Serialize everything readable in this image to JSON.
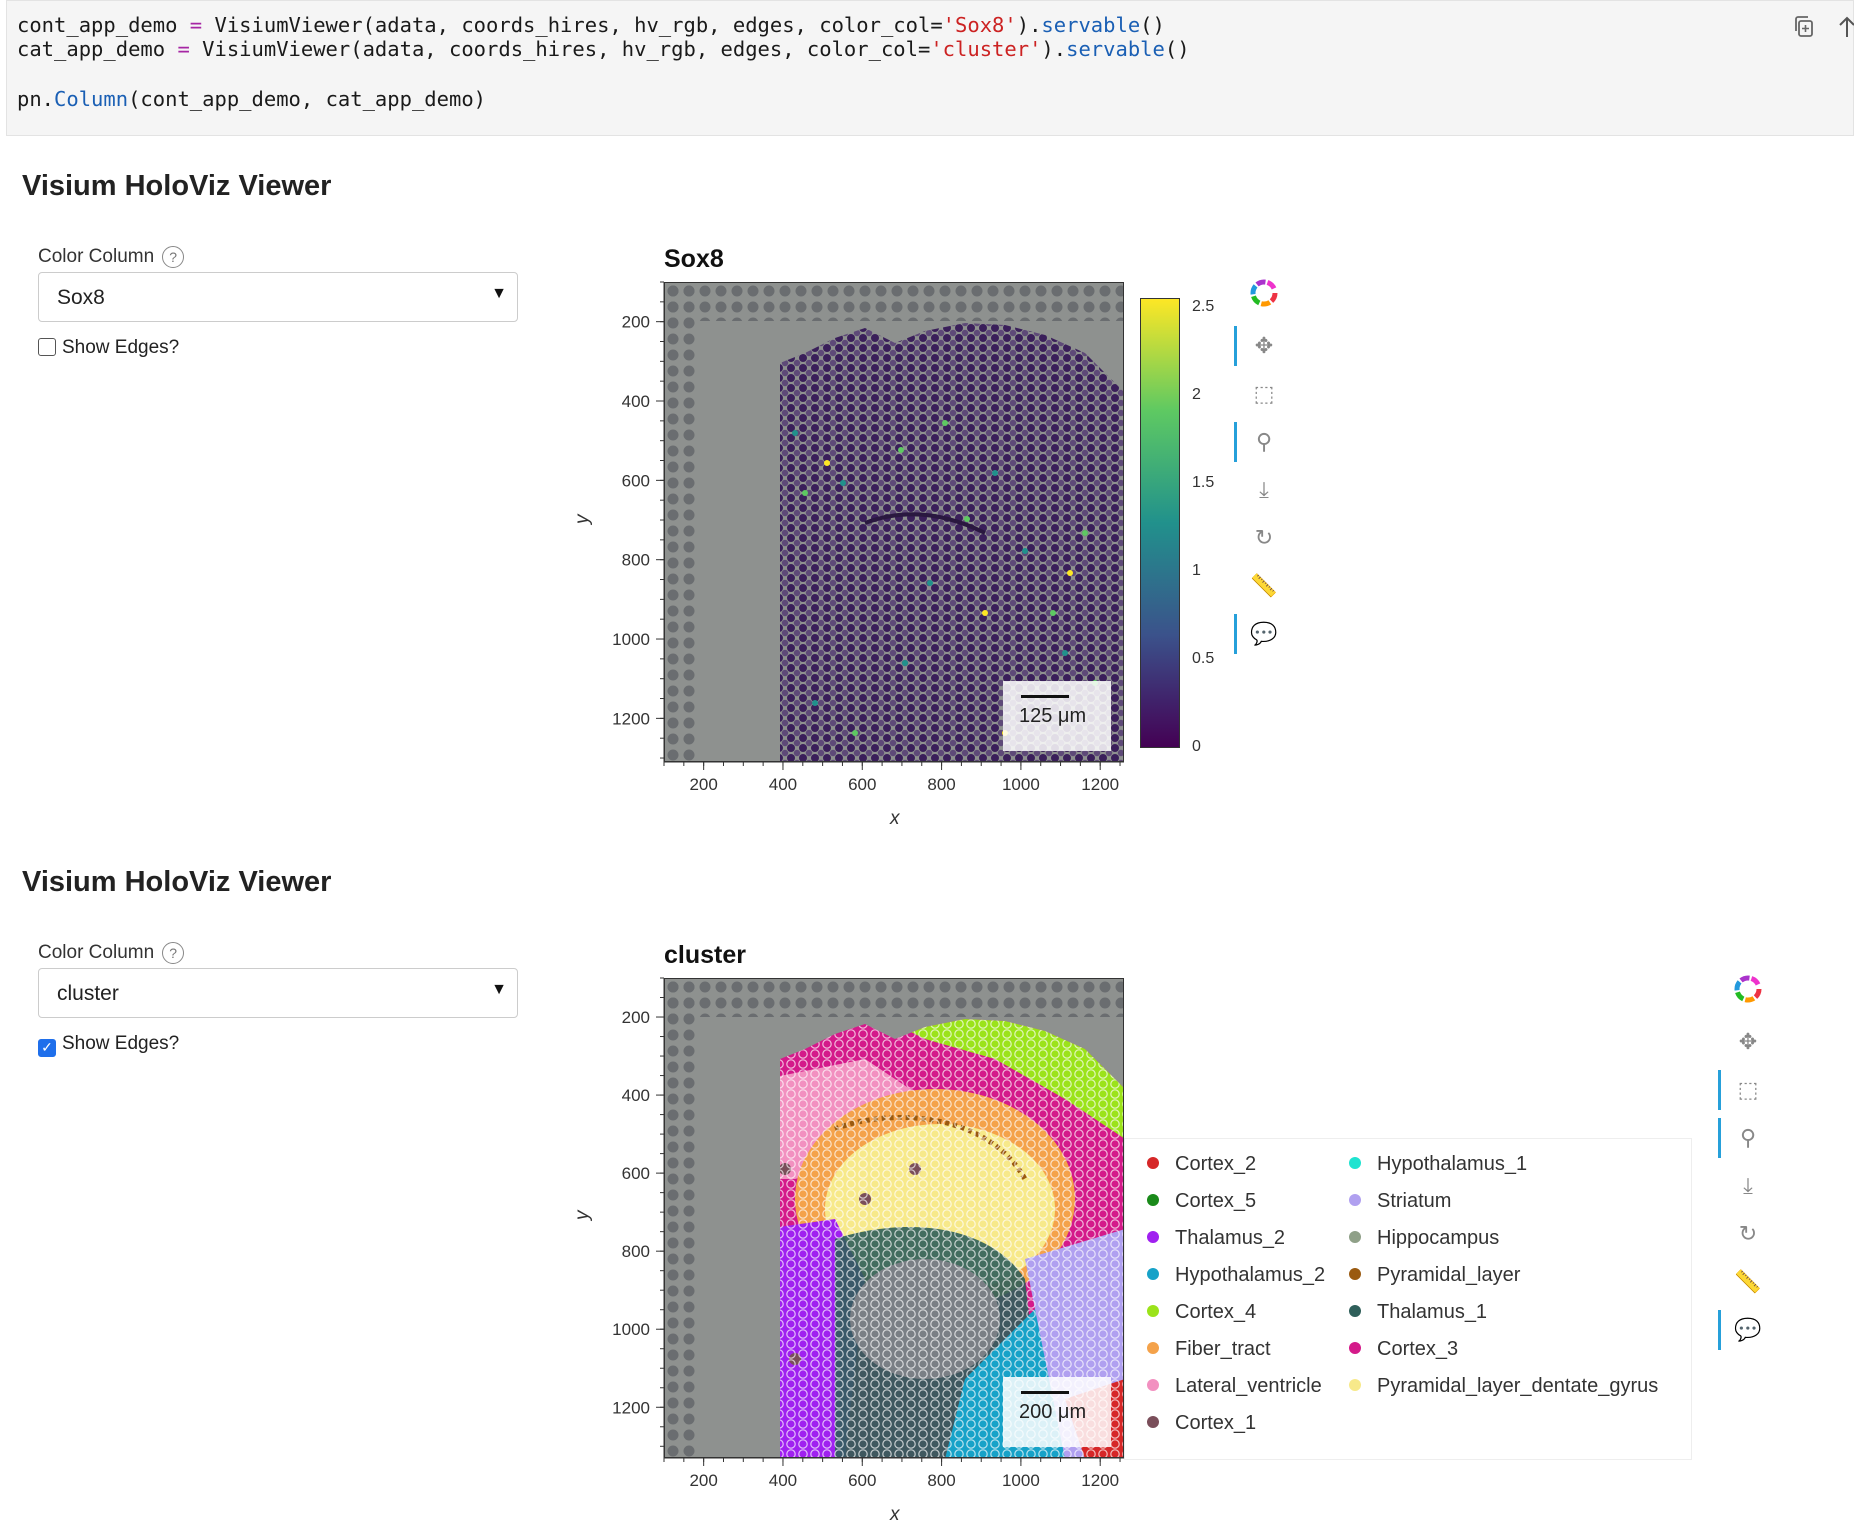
{
  "code": {
    "line1": {
      "a": "cont_app_demo ",
      "op": "=",
      "b": " VisiumViewer(adata, coords_hires, hv_rgb, edges, color_col=",
      "s": "'Sox8'",
      "c": ").",
      "f": "servable",
      "d": "()"
    },
    "line2": {
      "a": "cat_app_demo ",
      "op": "=",
      "b": " VisiumViewer(adata, coords_hires, hv_rgb, edges, color_col=",
      "s": "'cluster'",
      "c": ").",
      "f": "servable",
      "d": "()"
    },
    "line3": {
      "a": "pn.",
      "f": "Column",
      "b": "(cont_app_demo, cat_app_demo)"
    },
    "icons": [
      "copy-icon",
      "arrow-up-icon"
    ]
  },
  "apps": [
    {
      "title": "Visium HoloViz Viewer",
      "color_label": "Color Column",
      "help": "?",
      "selected": "Sox8",
      "show_edges_label": "Show Edges?",
      "show_edges": false,
      "plot_title": "Sox8",
      "xlabel": "x",
      "ylabel": "y",
      "scalebar": "125 μm",
      "colorbar_ticks": [
        "2.5",
        "2",
        "1.5",
        "1",
        "0.5",
        "0"
      ]
    },
    {
      "title": "Visium HoloViz Viewer",
      "color_label": "Color Column",
      "help": "?",
      "selected": "cluster",
      "show_edges_label": "Show Edges?",
      "show_edges": true,
      "plot_title": "cluster",
      "xlabel": "x",
      "ylabel": "y",
      "scalebar": "200 μm",
      "legend": [
        {
          "name": "Cortex_2",
          "color": "#d62728"
        },
        {
          "name": "Cortex_5",
          "color": "#1a8a1a"
        },
        {
          "name": "Thalamus_2",
          "color": "#a020f0"
        },
        {
          "name": "Hypothalamus_2",
          "color": "#17a2c8"
        },
        {
          "name": "Cortex_4",
          "color": "#9be31a"
        },
        {
          "name": "Fiber_tract",
          "color": "#f4a24a"
        },
        {
          "name": "Lateral_ventricle",
          "color": "#f290c0"
        },
        {
          "name": "Cortex_1",
          "color": "#7a4e5a"
        },
        {
          "name": "Hypothalamus_1",
          "color": "#1fe3d0"
        },
        {
          "name": "Striatum",
          "color": "#b0a0f0"
        },
        {
          "name": "Hippocampus",
          "color": "#8fa088"
        },
        {
          "name": "Pyramidal_layer",
          "color": "#9a5a10"
        },
        {
          "name": "Thalamus_1",
          "color": "#2f5f5a"
        },
        {
          "name": "Cortex_3",
          "color": "#d41a8a"
        },
        {
          "name": "Pyramidal_layer_dentate_gyrus",
          "color": "#f7e98a"
        }
      ]
    }
  ],
  "chart_data": [
    {
      "type": "scatter",
      "title": "Sox8",
      "xlabel": "x",
      "ylabel": "y",
      "x_ticks": [
        200,
        400,
        600,
        800,
        1000,
        1200
      ],
      "y_ticks": [
        200,
        400,
        600,
        800,
        1000,
        1200
      ],
      "xlim": [
        100,
        1260
      ],
      "ylim": [
        100,
        1310
      ],
      "y_inverted": true,
      "colorbar": {
        "min": 0,
        "max": 2.6,
        "ticks": [
          0,
          0.5,
          1,
          1.5,
          2,
          2.5
        ],
        "cmap": "viridis"
      }
    },
    {
      "type": "scatter",
      "title": "cluster",
      "xlabel": "x",
      "ylabel": "y",
      "x_ticks": [
        200,
        400,
        600,
        800,
        1000,
        1200
      ],
      "y_ticks": [
        200,
        400,
        600,
        800,
        1000,
        1200
      ],
      "xlim": [
        100,
        1260
      ],
      "ylim": [
        100,
        1330
      ],
      "y_inverted": true,
      "legend_position": "right"
    }
  ],
  "toolbar": [
    "bokeh-logo-icon",
    "pan-icon",
    "box-zoom-icon",
    "wheel-zoom-icon",
    "save-icon",
    "reset-icon",
    "ruler-icon",
    "hover-icon"
  ]
}
